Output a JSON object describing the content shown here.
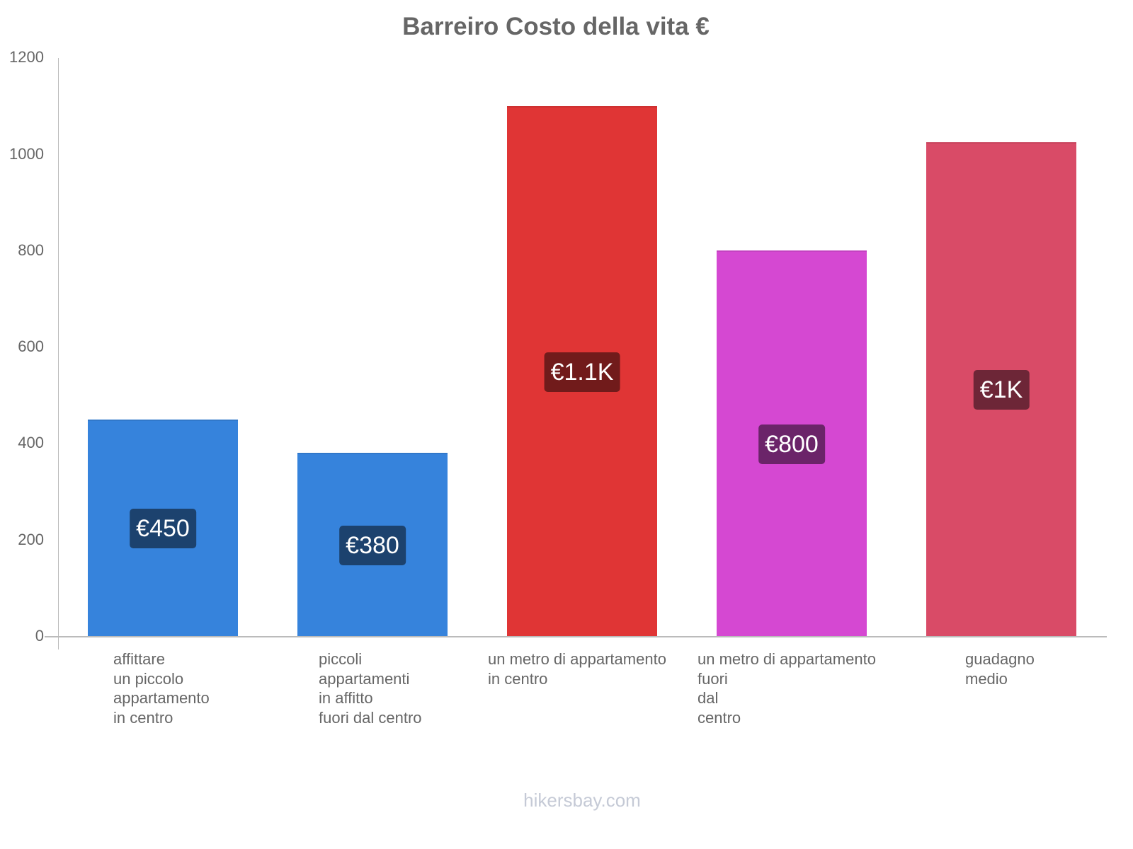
{
  "chart_data": {
    "type": "bar",
    "title": "Barreiro Costo della vita €",
    "xlabel": "",
    "ylabel": "",
    "ylim": [
      0,
      1200
    ],
    "yticks": [
      "0",
      "200",
      "400",
      "600",
      "800",
      "1000",
      "1200"
    ],
    "grid": false,
    "legend": null,
    "categories": [
      "affittare un piccolo appartamento in centro",
      "piccoli appartamenti in affitto fuori dal centro",
      "un metro di appartamento in centro",
      "un metro di appartamento fuori dal centro",
      "guadagno medio"
    ],
    "category_label_lines": [
      "affittare\nun piccolo\nappartamento\nin centro",
      "piccoli\nappartamenti\nin affitto\nfuori dal centro",
      "un metro di appartamento\nin centro",
      "un metro di appartamento\nfuori\ndal\ncentro",
      "guadagno\nmedio"
    ],
    "values": [
      450,
      380,
      1100,
      800,
      1025
    ],
    "value_labels": [
      "€450",
      "€380",
      "€1.1K",
      "€800",
      "€1K"
    ],
    "bar_colors": [
      "#3683dc",
      "#3683dc",
      "#e03535",
      "#d548d2",
      "#d94b67"
    ],
    "label_bg_colors": [
      "#1c426e",
      "#1c426e",
      "#711b1b",
      "#6b2469",
      "#6d2637"
    ]
  },
  "watermark": "hikersbay.com"
}
